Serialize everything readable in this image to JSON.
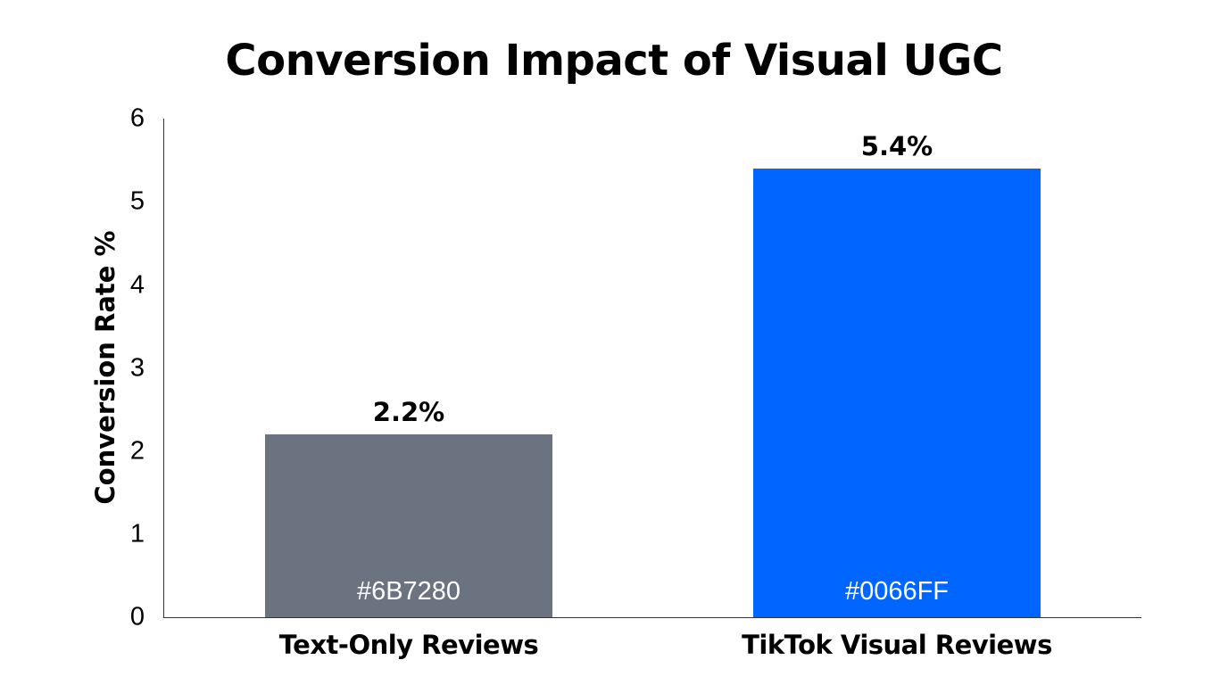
{
  "chart_data": {
    "type": "bar",
    "title": "Conversion Impact of Visual UGC",
    "xlabel": "",
    "ylabel": "Conversion Rate %",
    "ylim": [
      0,
      6
    ],
    "yticks": [
      "0",
      "1",
      "2",
      "3",
      "4",
      "5",
      "6"
    ],
    "grid": false,
    "legend": null,
    "categories": [
      "Text-Only Reviews",
      "TikTok Visual Reviews"
    ],
    "values": [
      2.2,
      5.4
    ],
    "value_labels": [
      "2.2%",
      "5.4%"
    ],
    "bar_colors": [
      "#6B7280",
      "#0066FF"
    ],
    "bar_annotations": [
      "#6B7280",
      "#0066FF"
    ]
  }
}
